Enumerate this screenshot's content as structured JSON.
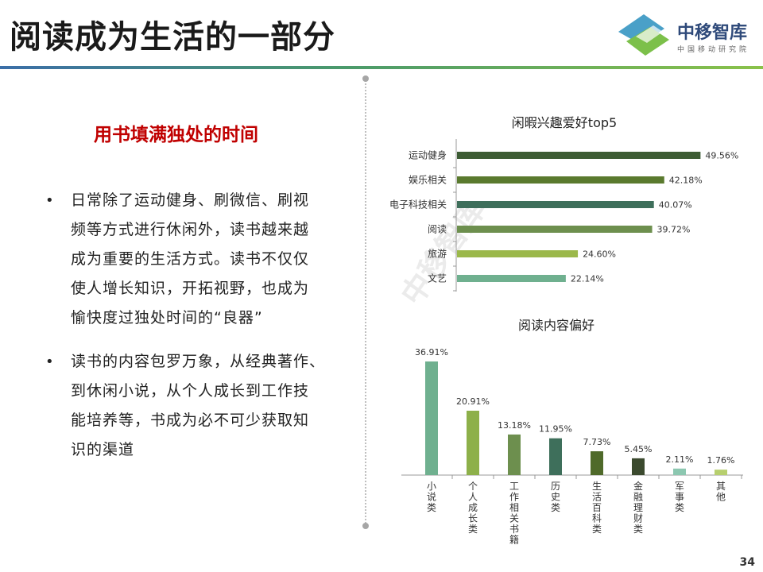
{
  "header": {
    "title": "阅读成为生活的一部分",
    "logo_text": "中移智库",
    "logo_sub": "中国移动研究院"
  },
  "left": {
    "subtitle": "用书填满独处的时间",
    "bullets": [
      [
        "日常除了运动健身、刷微信、刷视",
        "频等方式进行休闲外，读书越来越",
        "成为重要的生活方式。读书不仅仅",
        "使人增长知识，开拓视野，也成为",
        "愉快度过独处时间的“良器”"
      ],
      [
        "读书的内容包罗万象，从经典著作、",
        "到休闲小说，从个人成长到工作技",
        "能培养等，书成为必不可少获取知",
        "识的渠道"
      ]
    ]
  },
  "page_number": "34",
  "colors": {
    "title_red": "#c00000",
    "hbar_colors": [
      "#3d5c34",
      "#5a7a2e",
      "#3e6f5b",
      "#6d8f4e",
      "#9bb84a",
      "#6fb08f"
    ],
    "vbar_colors": [
      "#6fb08f",
      "#8db04a",
      "#6d8f4e",
      "#3e6f5b",
      "#4f6a2a",
      "#3b4a2e",
      "#8cc7b0",
      "#b7cf6e"
    ]
  },
  "chart_data": [
    {
      "type": "bar",
      "orientation": "horizontal",
      "title": "闲暇兴趣爱好top5",
      "categories": [
        "运动健身",
        "娱乐相关",
        "电子科技相关",
        "阅读",
        "旅游",
        "文艺"
      ],
      "values": [
        49.56,
        42.18,
        40.07,
        39.72,
        24.6,
        22.14
      ],
      "labels": [
        "49.56%",
        "42.18%",
        "40.07%",
        "39.72%",
        "24.60%",
        "22.14%"
      ],
      "xlim": [
        0,
        55
      ]
    },
    {
      "type": "bar",
      "orientation": "vertical",
      "title": "阅读内容偏好",
      "categories": [
        "小说类",
        "个人成长类",
        "工作相关书籍",
        "历史类",
        "生活百科类",
        "金融理财类",
        "军事类",
        "其他"
      ],
      "values": [
        36.91,
        20.91,
        13.18,
        11.95,
        7.73,
        5.45,
        2.11,
        1.76
      ],
      "labels": [
        "36.91%",
        "20.91%",
        "13.18%",
        "11.95%",
        "7.73%",
        "5.45%",
        "2.11%",
        "1.76%"
      ],
      "ylim": [
        0,
        40
      ]
    }
  ]
}
